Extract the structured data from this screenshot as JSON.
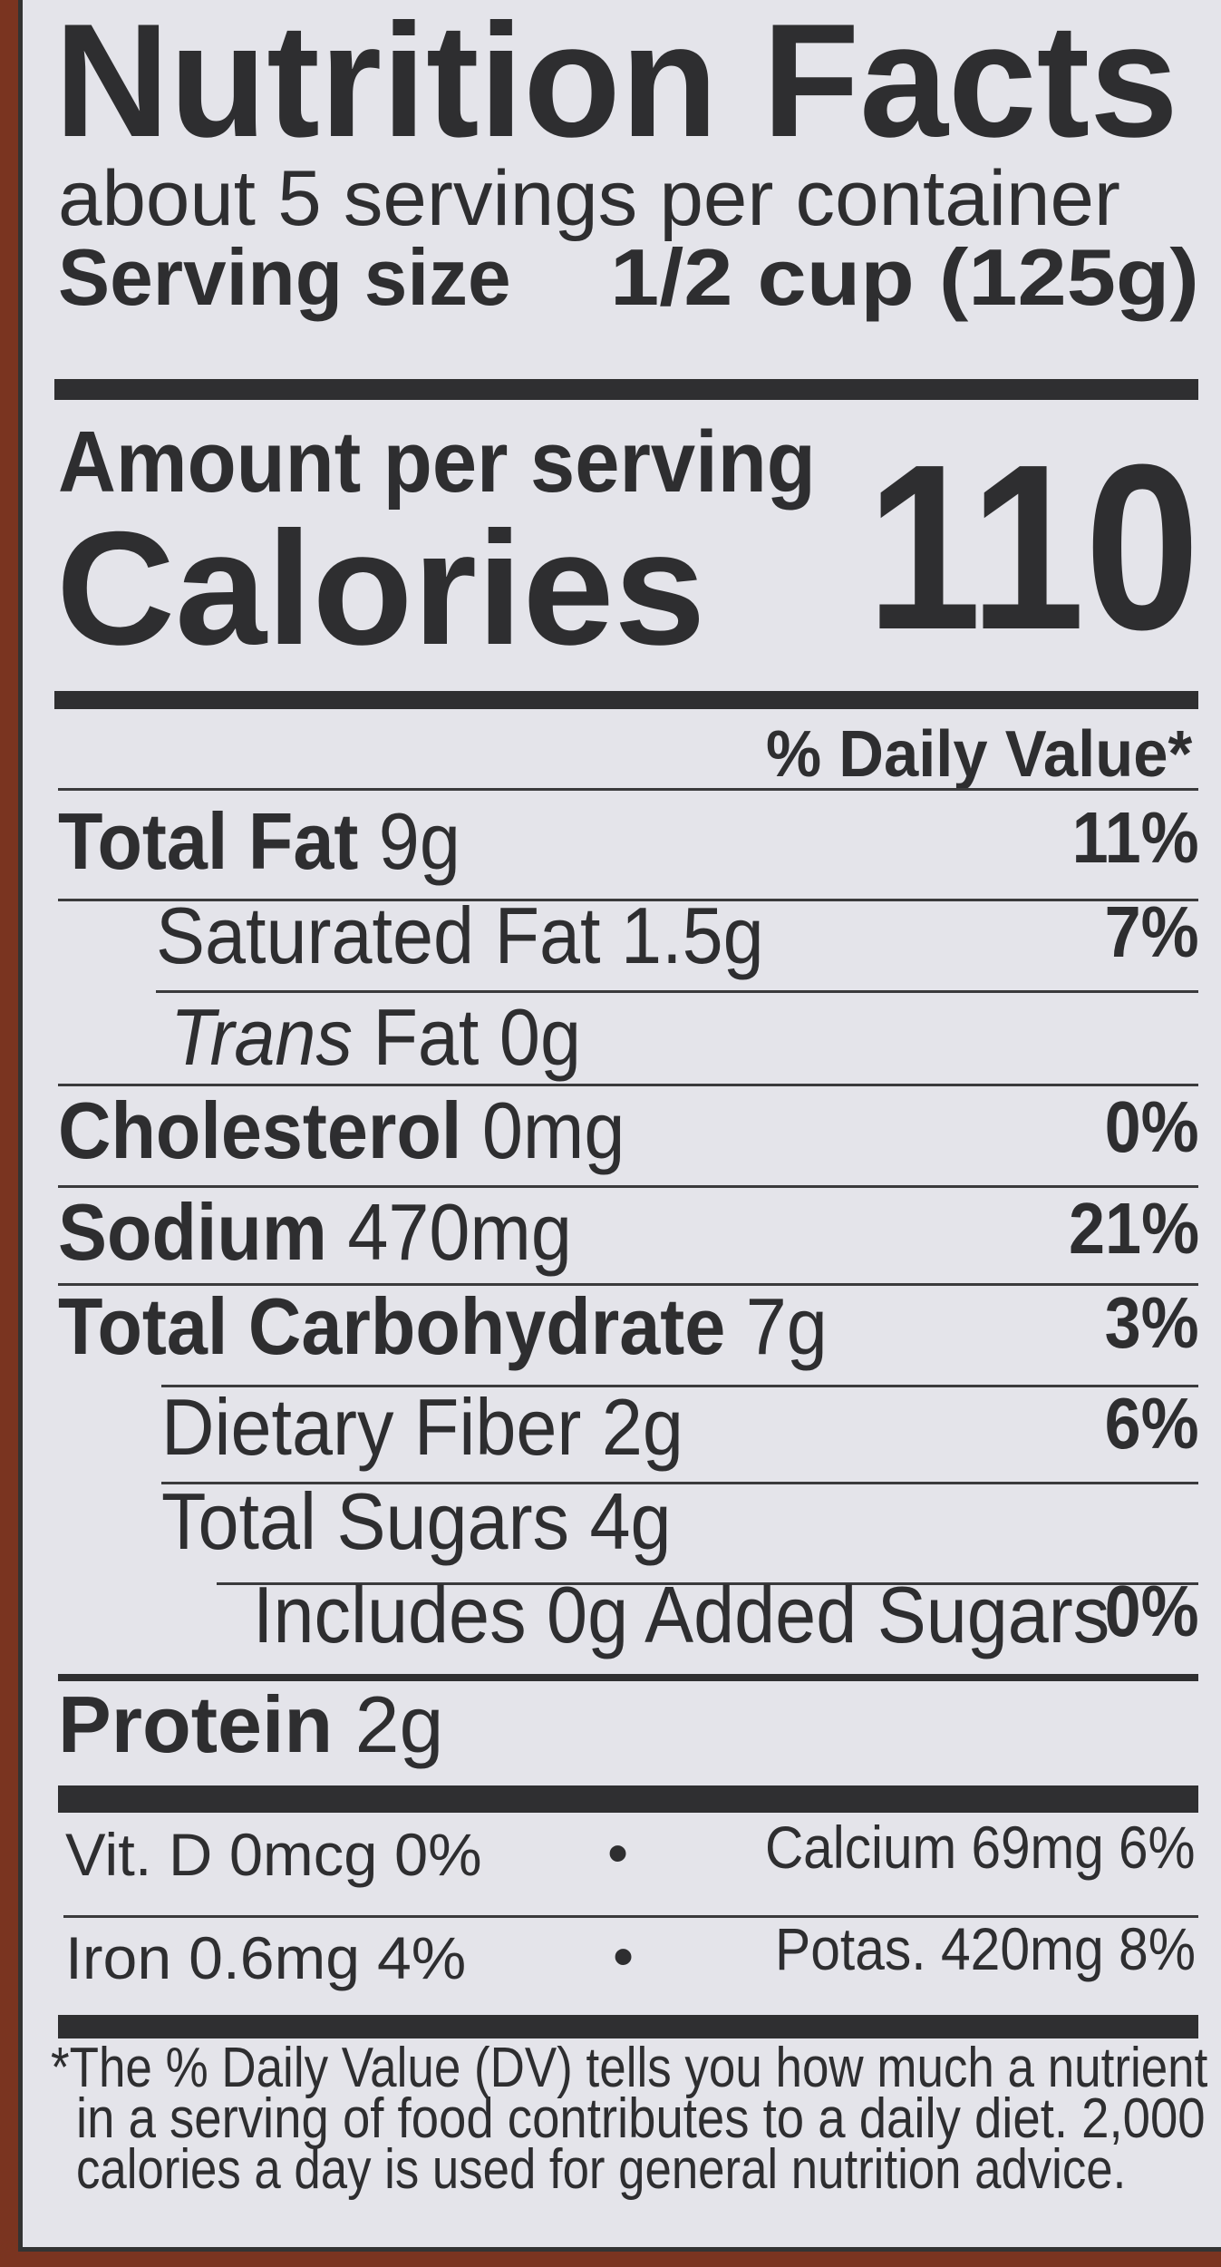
{
  "title": "Nutrition Facts",
  "servings_per_container": "about 5 servings per container",
  "serving_size": {
    "label": "Serving size",
    "value": "1/2 cup (125g)"
  },
  "amount_per_serving": "Amount per serving",
  "calories": {
    "label": "Calories",
    "value": "110"
  },
  "daily_value_header": "% Daily Value*",
  "nutrients": [
    {
      "name": "Total Fat",
      "amount": "9g",
      "dv": "11%"
    },
    {
      "name": "Saturated Fat",
      "amount": "1.5g",
      "dv": "7%"
    },
    {
      "name": "Trans",
      "name_suffix": "Fat",
      "amount": "0g"
    },
    {
      "name": "Cholesterol",
      "amount": "0mg",
      "dv": "0%"
    },
    {
      "name": "Sodium",
      "amount": "470mg",
      "dv": "21%"
    },
    {
      "name": "Total Carbohydrate",
      "amount": "7g",
      "dv": "3%"
    },
    {
      "name": "Dietary Fiber",
      "amount": "2g",
      "dv": "6%"
    },
    {
      "name": "Total Sugars",
      "amount": "4g"
    },
    {
      "name": "Includes 0g Added Sugars",
      "dv": "0%"
    },
    {
      "name": "Protein",
      "amount": "2g"
    }
  ],
  "vitamins": [
    {
      "text": "Vit. D 0mcg 0%"
    },
    {
      "text": "Calcium 69mg 6%"
    },
    {
      "text": "Iron 0.6mg 4%"
    },
    {
      "text": "Potas. 420mg 8%"
    }
  ],
  "separator": "•",
  "footnote": [
    "*The % Daily Value (DV) tells you how much a nutrient",
    "in a serving of food contributes to a daily diet. 2,000",
    "calories a day is used for general nutrition advice."
  ]
}
